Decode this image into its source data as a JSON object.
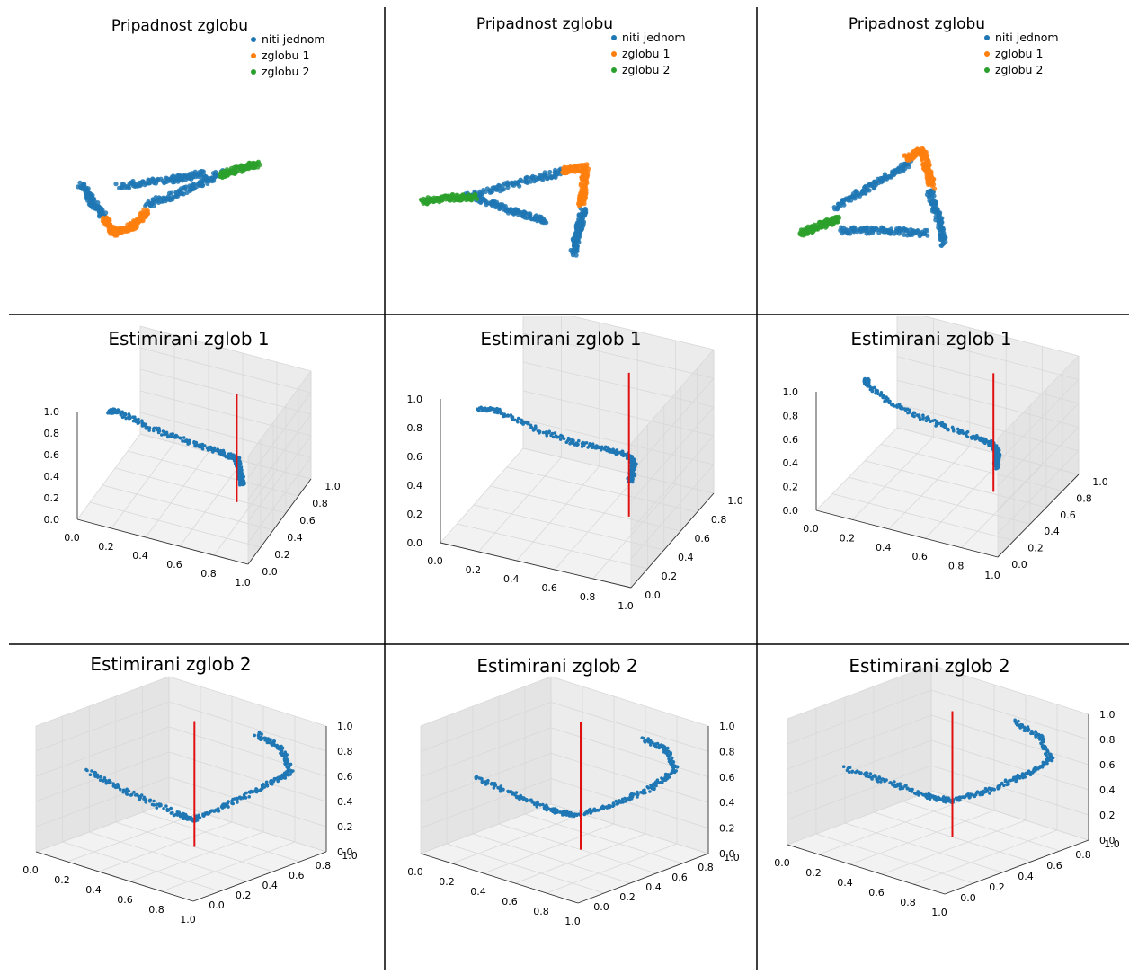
{
  "colors": {
    "niti_jednom": "#1f77b4",
    "zglobu_1": "#ff7f0e",
    "zglobu_2": "#2ca02c",
    "joint_axis": "#e01010",
    "pane_wall": "#ececec",
    "pane_side": "#f2f2f2",
    "grid_line": "#d8d8d8",
    "divider": "#000000"
  },
  "chart_data": [
    {
      "type": "scatter",
      "title": "Pripadnost zglobu",
      "legend": {
        "placement": "top-right",
        "items": [
          "niti jednom",
          "zglobu 1",
          "zglobu 2"
        ]
      },
      "axes_visible": false,
      "series": [
        {
          "name": "niti jednom",
          "segments": [
            [
              [
                -0.95,
                -0.05
              ],
              [
                -0.84,
                -0.23
              ],
              [
                -0.7,
                -0.43
              ]
            ],
            [
              [
                -0.25,
                -0.28
              ],
              [
                0.2,
                -0.1
              ],
              [
                0.55,
                0.08
              ]
            ],
            [
              [
                -0.55,
                -0.07
              ],
              [
                0.0,
                0.0
              ],
              [
                0.35,
                0.07
              ]
            ]
          ]
        },
        {
          "name": "zglobu 1",
          "segments": [
            [
              [
                -0.7,
                -0.43
              ],
              [
                -0.6,
                -0.6
              ],
              [
                -0.4,
                -0.52
              ],
              [
                -0.25,
                -0.35
              ]
            ]
          ]
        },
        {
          "name": "zglobu 2",
          "segments": [
            [
              [
                0.52,
                0.05
              ],
              [
                0.72,
                0.12
              ],
              [
                0.92,
                0.18
              ]
            ]
          ]
        }
      ]
    },
    {
      "type": "scatter",
      "title": "Pripadnost zglobu",
      "legend": {
        "placement": "top-right",
        "items": [
          "niti jednom",
          "zglobu 1",
          "zglobu 2"
        ]
      },
      "axes_visible": false,
      "series": [
        {
          "name": "niti jednom",
          "segments": [
            [
              [
                -0.55,
                -0.12
              ],
              [
                0.0,
                0.1
              ],
              [
                0.45,
                0.25
              ]
            ],
            [
              [
                -0.45,
                -0.12
              ],
              [
                -0.1,
                -0.3
              ],
              [
                0.25,
                -0.45
              ]
            ],
            [
              [
                0.6,
                -0.28
              ],
              [
                0.55,
                -0.6
              ],
              [
                0.5,
                -0.9
              ]
            ]
          ]
        },
        {
          "name": "zglobu 1",
          "segments": [
            [
              [
                0.4,
                0.25
              ],
              [
                0.62,
                0.3
              ],
              [
                0.6,
                -0.05
              ],
              [
                0.58,
                -0.22
              ]
            ]
          ]
        },
        {
          "name": "zglobu 2",
          "segments": [
            [
              [
                -0.95,
                -0.18
              ],
              [
                -0.7,
                -0.12
              ],
              [
                -0.45,
                -0.12
              ]
            ]
          ]
        }
      ]
    },
    {
      "type": "scatter",
      "title": "Pripadnost zglobu",
      "legend": {
        "placement": "top-right",
        "items": [
          "niti jednom",
          "zglobu 1",
          "zglobu 2"
        ]
      },
      "axes_visible": false,
      "series": [
        {
          "name": "niti jednom",
          "segments": [
            [
              [
                -0.6,
                -0.2
              ],
              [
                -0.2,
                0.12
              ],
              [
                0.15,
                0.42
              ]
            ],
            [
              [
                -0.55,
                -0.52
              ],
              [
                -0.1,
                -0.52
              ],
              [
                0.35,
                -0.56
              ]
            ],
            [
              [
                0.35,
                0.05
              ],
              [
                0.45,
                -0.35
              ],
              [
                0.5,
                -0.72
              ]
            ]
          ]
        },
        {
          "name": "zglobu 1",
          "segments": [
            [
              [
                0.12,
                0.48
              ],
              [
                0.28,
                0.6
              ],
              [
                0.33,
                0.35
              ],
              [
                0.38,
                0.1
              ]
            ]
          ]
        },
        {
          "name": "zglobu 2",
          "segments": [
            [
              [
                -0.95,
                -0.55
              ],
              [
                -0.75,
                -0.45
              ],
              [
                -0.55,
                -0.35
              ]
            ]
          ]
        }
      ]
    },
    {
      "type": "scatter3d",
      "title": "Estimirani zglob 1",
      "xlim": [
        0,
        1
      ],
      "ylim": [
        0,
        1
      ],
      "zlim": [
        0,
        1
      ],
      "ticks": [
        "0.0",
        "0.2",
        "0.4",
        "0.6",
        "0.8",
        "1.0"
      ],
      "grid": true,
      "points_series": "estimated trajectory",
      "trajectory": [
        [
          0.05,
          0.35,
          0.75
        ],
        [
          0.1,
          0.4,
          0.72
        ],
        [
          0.25,
          0.45,
          0.6
        ],
        [
          0.45,
          0.5,
          0.52
        ],
        [
          0.62,
          0.55,
          0.46
        ],
        [
          0.72,
          0.58,
          0.4
        ],
        [
          0.8,
          0.4,
          0.52
        ],
        [
          0.88,
          0.2,
          0.62
        ],
        [
          0.95,
          0.05,
          0.68
        ]
      ],
      "axis_line": {
        "x": 0.72,
        "y": 0.58,
        "z": [
          0.0,
          1.0
        ]
      }
    },
    {
      "type": "scatter3d",
      "title": "Estimirani zglob 1",
      "xlim": [
        0,
        1
      ],
      "ylim": [
        0,
        1
      ],
      "zlim": [
        0,
        1
      ],
      "ticks": [
        "0.0",
        "0.2",
        "0.4",
        "0.6",
        "0.8",
        "1.0"
      ],
      "grid": true,
      "points_series": "estimated trajectory",
      "trajectory": [
        [
          0.05,
          0.35,
          0.72
        ],
        [
          0.12,
          0.42,
          0.68
        ],
        [
          0.3,
          0.5,
          0.55
        ],
        [
          0.48,
          0.55,
          0.48
        ],
        [
          0.62,
          0.6,
          0.45
        ],
        [
          0.72,
          0.62,
          0.42
        ],
        [
          0.82,
          0.45,
          0.52
        ],
        [
          0.9,
          0.25,
          0.6
        ],
        [
          0.95,
          0.1,
          0.66
        ]
      ],
      "axis_line": {
        "x": 0.72,
        "y": 0.62,
        "z": [
          0.0,
          1.0
        ]
      }
    },
    {
      "type": "scatter3d",
      "title": "Estimirani zglob 1",
      "xlim": [
        0,
        1
      ],
      "ylim": [
        0,
        1
      ],
      "zlim": [
        0,
        1
      ],
      "ticks": [
        "0.0",
        "0.2",
        "0.4",
        "0.6",
        "0.8",
        "1.0"
      ],
      "grid": true,
      "points_series": "estimated trajectory",
      "trajectory": [
        [
          0.12,
          0.35,
          0.9
        ],
        [
          0.08,
          0.45,
          0.78
        ],
        [
          0.2,
          0.5,
          0.62
        ],
        [
          0.4,
          0.55,
          0.52
        ],
        [
          0.6,
          0.6,
          0.44
        ],
        [
          0.7,
          0.62,
          0.4
        ],
        [
          0.8,
          0.45,
          0.48
        ],
        [
          0.88,
          0.25,
          0.58
        ],
        [
          0.95,
          0.1,
          0.66
        ]
      ],
      "axis_line": {
        "x": 0.7,
        "y": 0.62,
        "z": [
          0.0,
          1.0
        ]
      }
    },
    {
      "type": "scatter3d",
      "title": "Estimirani zglob 2",
      "xlim": [
        0,
        1
      ],
      "ylim": [
        0,
        1
      ],
      "zlim": [
        0,
        1
      ],
      "ticks": [
        "0.0",
        "0.2",
        "0.4",
        "0.6",
        "0.8",
        "1.0"
      ],
      "grid": true,
      "points_series": "estimated trajectory",
      "trajectory": [
        [
          0.08,
          0.3,
          0.55
        ],
        [
          0.3,
          0.35,
          0.45
        ],
        [
          0.55,
          0.42,
          0.35
        ],
        [
          0.62,
          0.45,
          0.32
        ],
        [
          0.75,
          0.55,
          0.45
        ],
        [
          0.85,
          0.7,
          0.58
        ],
        [
          0.9,
          0.85,
          0.65
        ],
        [
          0.8,
          0.9,
          0.78
        ],
        [
          0.62,
          0.92,
          0.82
        ]
      ],
      "axis_line": {
        "x": 0.5,
        "y": 0.6,
        "z": [
          0.0,
          1.0
        ]
      }
    },
    {
      "type": "scatter3d",
      "title": "Estimirani zglob 2",
      "xlim": [
        0,
        1
      ],
      "ylim": [
        0,
        1
      ],
      "zlim": [
        0,
        1
      ],
      "ticks": [
        "0.0",
        "0.2",
        "0.4",
        "0.6",
        "0.8",
        "1.0"
      ],
      "grid": true,
      "points_series": "estimated trajectory",
      "trajectory": [
        [
          0.1,
          0.3,
          0.52
        ],
        [
          0.3,
          0.35,
          0.45
        ],
        [
          0.5,
          0.4,
          0.38
        ],
        [
          0.6,
          0.45,
          0.36
        ],
        [
          0.75,
          0.55,
          0.45
        ],
        [
          0.88,
          0.7,
          0.58
        ],
        [
          0.92,
          0.85,
          0.68
        ],
        [
          0.82,
          0.9,
          0.78
        ],
        [
          0.65,
          0.92,
          0.8
        ]
      ],
      "axis_line": {
        "x": 0.52,
        "y": 0.6,
        "z": [
          0.0,
          1.0
        ]
      }
    },
    {
      "type": "scatter3d",
      "title": "Estimirani zglob 2",
      "xlim": [
        0,
        1
      ],
      "ylim": [
        0,
        1
      ],
      "zlim": [
        0,
        1
      ],
      "ticks": [
        "0.0",
        "0.2",
        "0.4",
        "0.6",
        "0.8",
        "1.0"
      ],
      "grid": true,
      "points_series": "estimated trajectory",
      "trajectory": [
        [
          0.1,
          0.3,
          0.52
        ],
        [
          0.3,
          0.38,
          0.45
        ],
        [
          0.48,
          0.45,
          0.38
        ],
        [
          0.58,
          0.5,
          0.36
        ],
        [
          0.72,
          0.6,
          0.45
        ],
        [
          0.85,
          0.72,
          0.58
        ],
        [
          0.9,
          0.85,
          0.66
        ],
        [
          0.78,
          0.9,
          0.78
        ],
        [
          0.6,
          0.92,
          0.82
        ]
      ],
      "axis_line": {
        "x": 0.5,
        "y": 0.6,
        "z": [
          0.0,
          1.0
        ]
      }
    }
  ]
}
